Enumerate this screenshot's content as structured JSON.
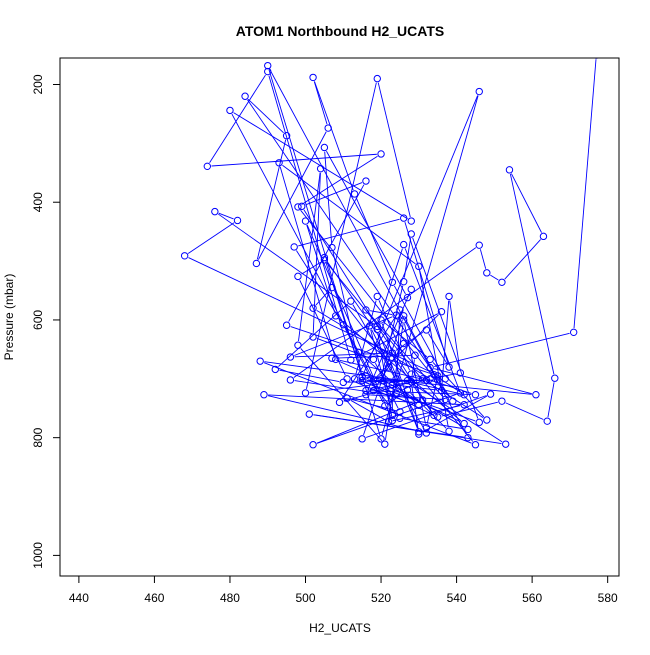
{
  "chart_data": {
    "type": "scatter",
    "title": "ATOM1 Northbound H2_UCATS",
    "xlabel": "H2_UCATS",
    "ylabel": "Pressure (mbar)",
    "xlim": [
      435,
      583
    ],
    "ylim": [
      1035,
      155
    ],
    "y_reversed": true,
    "grid": false,
    "colors": {
      "series": "#0000ff",
      "axis": "#000000",
      "text": "#000000"
    },
    "x_ticks": [
      440,
      460,
      480,
      500,
      520,
      540,
      560,
      580
    ],
    "y_ticks": [
      200,
      400,
      600,
      800,
      1000
    ],
    "series": [
      {
        "marker": "open-circle",
        "connected": true,
        "points": [
          [
            577,
            150
          ],
          [
            571,
            621
          ],
          [
            533,
            681
          ],
          [
            561,
            727
          ],
          [
            515,
            697
          ],
          [
            546,
            212
          ],
          [
            520,
            802
          ],
          [
            490,
            168
          ],
          [
            543,
            800
          ],
          [
            501,
            760
          ],
          [
            553,
            811
          ],
          [
            527,
            703
          ],
          [
            500,
            724
          ],
          [
            519,
            190
          ],
          [
            528,
            432
          ],
          [
            480,
            244
          ],
          [
            518,
            702
          ],
          [
            536,
            586
          ],
          [
            512,
            668
          ],
          [
            490,
            178
          ],
          [
            474,
            339
          ],
          [
            520,
            318
          ],
          [
            498,
            408
          ],
          [
            539,
            738
          ],
          [
            484,
            220
          ],
          [
            495,
            287
          ],
          [
            487,
            504
          ],
          [
            506,
            274
          ],
          [
            502,
            188
          ],
          [
            513,
            386
          ],
          [
            523,
            536
          ],
          [
            537,
            700
          ],
          [
            468,
            491
          ],
          [
            482,
            431
          ],
          [
            476,
            416
          ],
          [
            519,
            611
          ],
          [
            526,
            472
          ],
          [
            541,
            724
          ],
          [
            502,
            812
          ],
          [
            531,
            736
          ],
          [
            496,
            702
          ],
          [
            546,
            473
          ],
          [
            548,
            520
          ],
          [
            552,
            536
          ],
          [
            563,
            458
          ],
          [
            554,
            345
          ],
          [
            566,
            699
          ],
          [
            564,
            772
          ],
          [
            552,
            738
          ],
          [
            535,
            765
          ],
          [
            515,
            703
          ],
          [
            532,
            702
          ],
          [
            508,
            667
          ],
          [
            493,
            333
          ],
          [
            530,
            509
          ],
          [
            538,
            789
          ],
          [
            527,
            719
          ],
          [
            521,
            746
          ],
          [
            510,
            608
          ],
          [
            497,
            476
          ],
          [
            526,
            427
          ],
          [
            538,
            680
          ],
          [
            532,
            617
          ],
          [
            523,
            656
          ],
          [
            496,
            663
          ],
          [
            524,
            592
          ],
          [
            516,
            583
          ],
          [
            537,
            735
          ],
          [
            516,
            727
          ],
          [
            528,
            548
          ],
          [
            527,
            562
          ],
          [
            505,
            307
          ],
          [
            507,
            477
          ],
          [
            515,
            696
          ],
          [
            505,
            494
          ],
          [
            534,
            762
          ],
          [
            499,
            407
          ],
          [
            516,
            364
          ],
          [
            495,
            609
          ],
          [
            535,
            695
          ],
          [
            532,
            783
          ],
          [
            526,
            600
          ],
          [
            521,
            811
          ],
          [
            498,
            643
          ],
          [
            504,
            343
          ],
          [
            502,
            629
          ],
          [
            518,
            667
          ],
          [
            525,
            756
          ],
          [
            511,
            733
          ],
          [
            522,
            773
          ],
          [
            542,
            744
          ],
          [
            489,
            727
          ],
          [
            532,
            792
          ],
          [
            512,
            568
          ],
          [
            492,
            684
          ],
          [
            510,
            706
          ],
          [
            535,
            702
          ],
          [
            526,
            593
          ],
          [
            515,
            802
          ],
          [
            549,
            726
          ],
          [
            530,
            794
          ],
          [
            528,
            705
          ],
          [
            516,
            720
          ],
          [
            545,
            727
          ],
          [
            528,
            692
          ],
          [
            519,
            560
          ],
          [
            513,
            700
          ],
          [
            546,
            774
          ],
          [
            528,
            454
          ],
          [
            526,
            535
          ],
          [
            520,
            700
          ],
          [
            543,
            786
          ],
          [
            525,
            767
          ],
          [
            516,
            695
          ],
          [
            542,
            776
          ],
          [
            508,
            593
          ],
          [
            500,
            432
          ],
          [
            523,
            771
          ],
          [
            519,
            616
          ],
          [
            530,
            790
          ],
          [
            520,
            600
          ],
          [
            533,
            667
          ],
          [
            548,
            770
          ],
          [
            531,
            700
          ],
          [
            509,
            740
          ],
          [
            525,
            583
          ],
          [
            524,
            724
          ],
          [
            534,
            693
          ],
          [
            542,
            727
          ],
          [
            524,
            700
          ],
          [
            517,
            610
          ],
          [
            523,
            762
          ],
          [
            523,
            731
          ],
          [
            511,
            700
          ],
          [
            498,
            526
          ],
          [
            505,
            498
          ],
          [
            545,
            812
          ],
          [
            488,
            670
          ],
          [
            528,
            705
          ],
          [
            529,
            660
          ],
          [
            507,
            665
          ],
          [
            523,
            710
          ],
          [
            536,
            720
          ],
          [
            538,
            560
          ],
          [
            541,
            690
          ],
          [
            533,
            700
          ],
          [
            502,
            580
          ],
          [
            507,
            545
          ],
          [
            521,
            660
          ],
          [
            522,
            680
          ],
          [
            526,
            640
          ],
          [
            518,
            720
          ],
          [
            530,
            745
          ],
          [
            514,
            655
          ]
        ]
      }
    ]
  }
}
